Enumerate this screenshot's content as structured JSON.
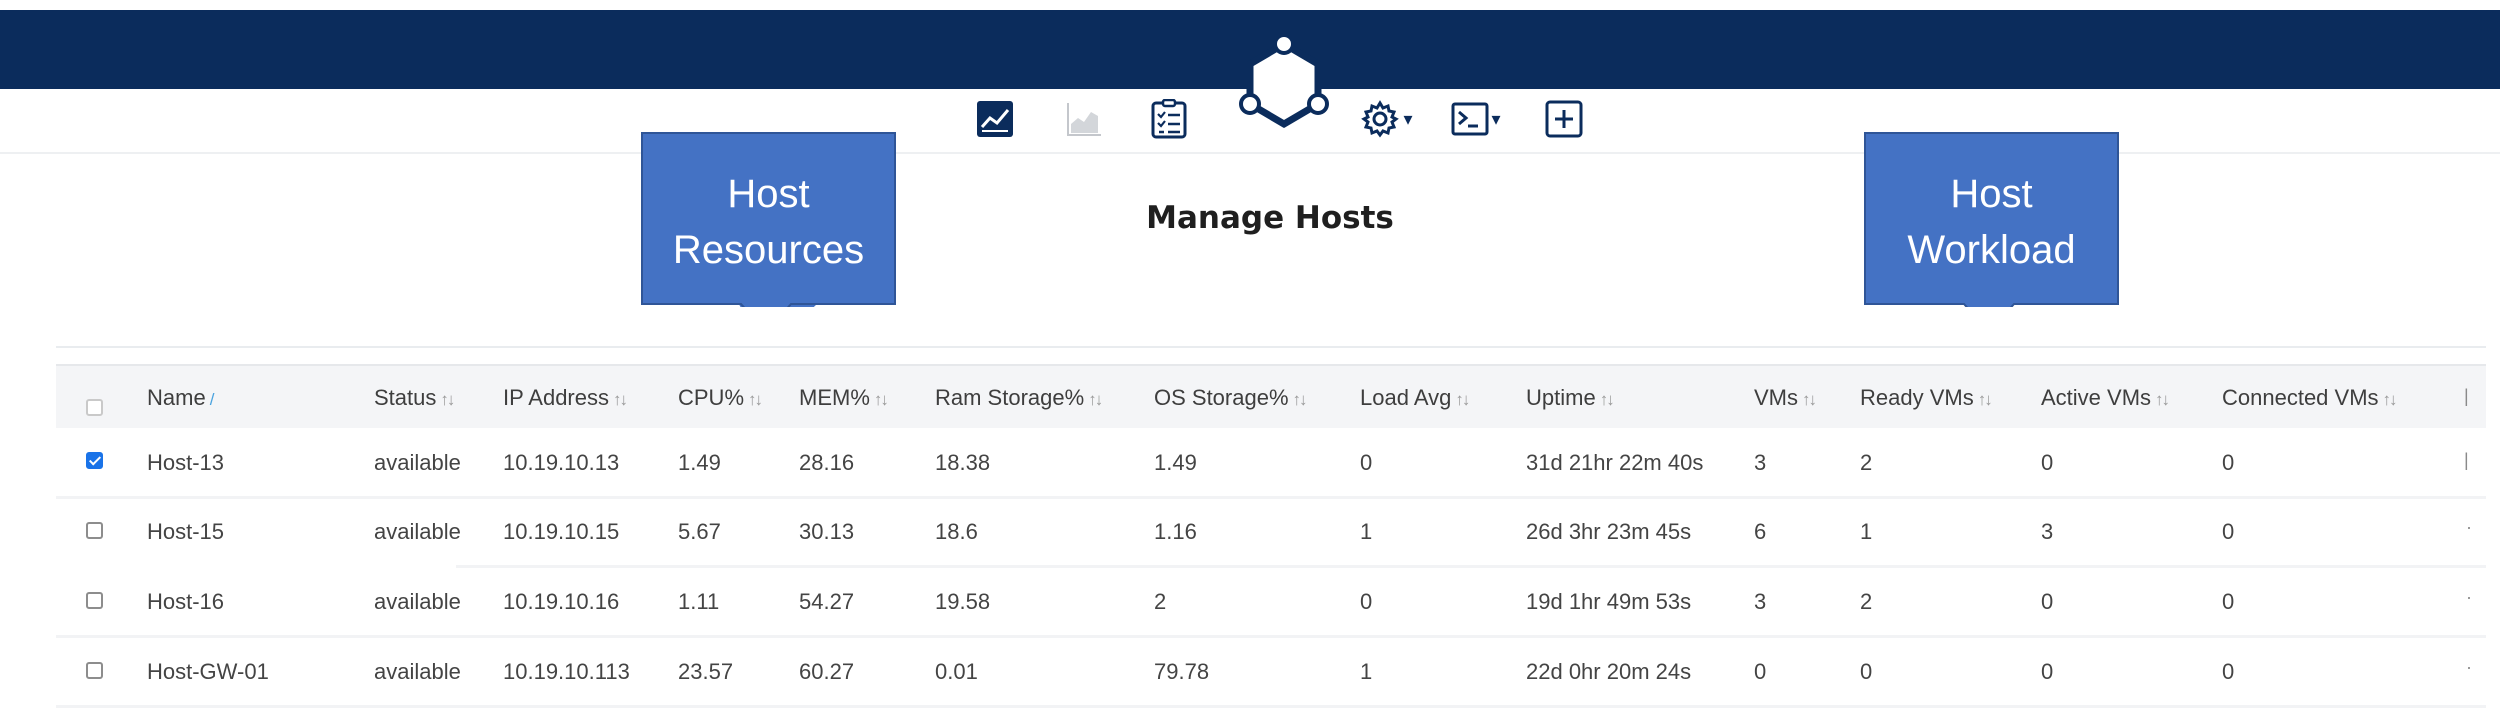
{
  "toolbar": {
    "icons": [
      "dashboard-icon",
      "area-chart-icon",
      "checklist-icon",
      "settings-icon",
      "terminal-icon",
      "add-icon"
    ],
    "dropdown_caret": "▾"
  },
  "page": {
    "title": "Manage Hosts"
  },
  "callouts": {
    "resources": {
      "line1": "Host",
      "line2": "Resources"
    },
    "workload": {
      "line1": "Host",
      "line2": "Workload"
    }
  },
  "colors": {
    "topbar": "#0b2c5c",
    "callout": "#4472c4",
    "callout_border": "#2f5597",
    "checkbox_checked": "#1a73e8",
    "sort_active": "#4aa3df"
  },
  "table": {
    "columns": [
      {
        "label": "Name",
        "sort_glyph": "/"
      },
      {
        "label": "Status",
        "sort_glyph": "↑↓"
      },
      {
        "label": "IP Address",
        "sort_glyph": "↑↓"
      },
      {
        "label": "CPU%",
        "sort_glyph": "↑↓"
      },
      {
        "label": "MEM%",
        "sort_glyph": "↑↓"
      },
      {
        "label": "Ram Storage%",
        "sort_glyph": "↑↓"
      },
      {
        "label": "OS Storage%",
        "sort_glyph": "↑↓"
      },
      {
        "label": "Load Avg",
        "sort_glyph": "↑↓"
      },
      {
        "label": "Uptime",
        "sort_glyph": "↑↓"
      },
      {
        "label": "VMs",
        "sort_glyph": "↑↓"
      },
      {
        "label": "Ready VMs",
        "sort_glyph": "↑↓"
      },
      {
        "label": "Active VMs",
        "sort_glyph": "↑↓"
      },
      {
        "label": "Connected VMs",
        "sort_glyph": "↑↓"
      }
    ],
    "rows": [
      {
        "checked": true,
        "name": "Host-13",
        "status": "available",
        "ip": "10.19.10.13",
        "cpu": "1.49",
        "mem": "28.16",
        "ram": "18.38",
        "os": "1.49",
        "load": "0",
        "uptime": "31d 21hr 22m 40s",
        "vms": "3",
        "ready": "2",
        "active": "0",
        "connected": "0"
      },
      {
        "checked": false,
        "name": "Host-15",
        "status": "available",
        "ip": "10.19.10.15",
        "cpu": "5.67",
        "mem": "30.13",
        "ram": "18.6",
        "os": "1.16",
        "load": "1",
        "uptime": "26d 3hr 23m 45s",
        "vms": "6",
        "ready": "1",
        "active": "3",
        "connected": "0"
      },
      {
        "checked": false,
        "name": "Host-16",
        "status": "available",
        "ip": "10.19.10.16",
        "cpu": "1.11",
        "mem": "54.27",
        "ram": "19.58",
        "os": "2",
        "load": "0",
        "uptime": "19d 1hr 49m 53s",
        "vms": "3",
        "ready": "2",
        "active": "0",
        "connected": "0"
      },
      {
        "checked": false,
        "name": "Host-GW-01",
        "status": "available",
        "ip": "10.19.10.113",
        "cpu": "23.57",
        "mem": "60.27",
        "ram": "0.01",
        "os": "79.78",
        "load": "1",
        "uptime": "22d 0hr 20m 24s",
        "vms": "0",
        "ready": "0",
        "active": "0",
        "connected": "0"
      }
    ]
  }
}
